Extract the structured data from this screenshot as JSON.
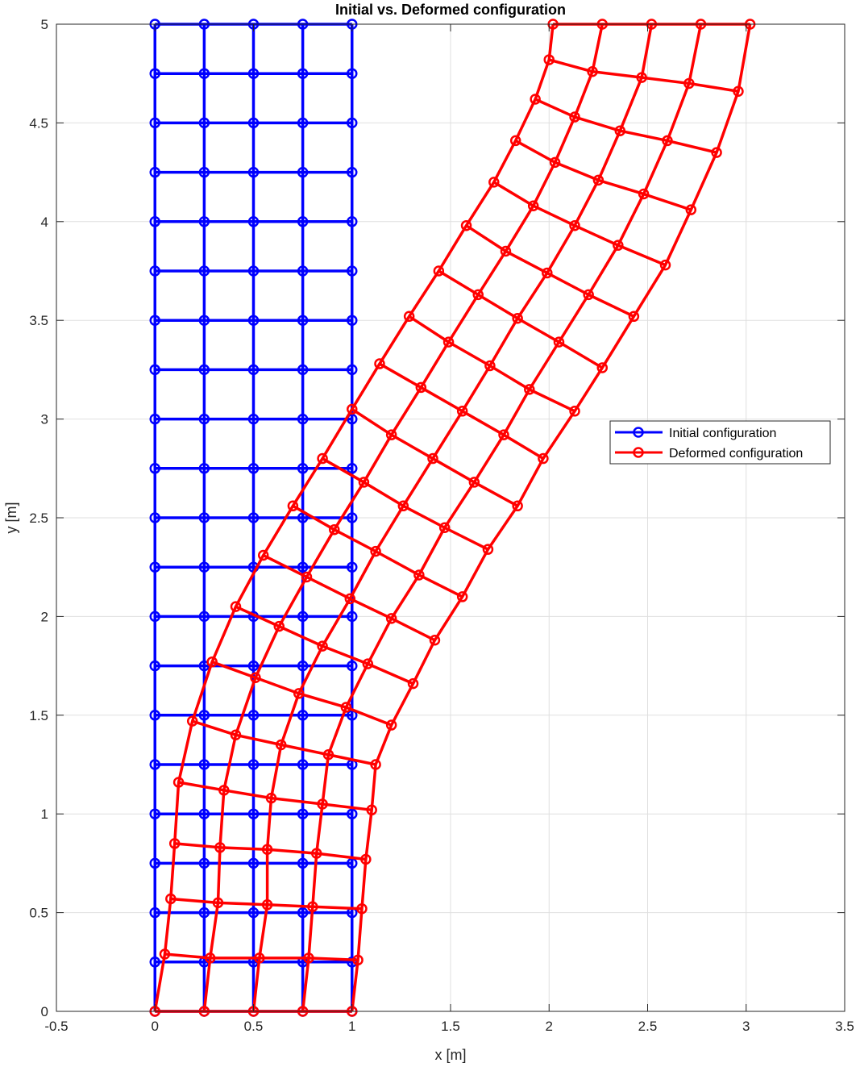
{
  "chart_data": {
    "type": "line",
    "title": "Initial vs. Deformed configuration",
    "xlabel": "x [m]",
    "ylabel": "y [m]",
    "xlim": [
      -0.5,
      3.5
    ],
    "ylim": [
      0,
      5
    ],
    "xticks": [
      -0.5,
      0,
      0.5,
      1,
      1.5,
      2,
      2.5,
      3,
      3.5
    ],
    "xtick_labels": [
      "-0.5",
      "0",
      "0.5",
      "1",
      "1.5",
      "2",
      "2.5",
      "3",
      "3.5"
    ],
    "yticks": [
      0,
      0.5,
      1,
      1.5,
      2,
      2.5,
      3,
      3.5,
      4,
      4.5,
      5
    ],
    "ytick_labels": [
      "0",
      "0.5",
      "1",
      "1.5",
      "2",
      "2.5",
      "3",
      "3.5",
      "4",
      "4.5",
      "5"
    ],
    "grid": true,
    "legend_position": "right",
    "series": [
      {
        "name": "Initial configuration",
        "color": "#0000ff",
        "marker": "circle",
        "nodes": [
          [
            [
              0,
              0
            ],
            [
              0.25,
              0
            ],
            [
              0.5,
              0
            ],
            [
              0.75,
              0
            ],
            [
              1,
              0
            ]
          ],
          [
            [
              0,
              0.25
            ],
            [
              0.25,
              0.25
            ],
            [
              0.5,
              0.25
            ],
            [
              0.75,
              0.25
            ],
            [
              1,
              0.25
            ]
          ],
          [
            [
              0,
              0.5
            ],
            [
              0.25,
              0.5
            ],
            [
              0.5,
              0.5
            ],
            [
              0.75,
              0.5
            ],
            [
              1,
              0.5
            ]
          ],
          [
            [
              0,
              0.75
            ],
            [
              0.25,
              0.75
            ],
            [
              0.5,
              0.75
            ],
            [
              0.75,
              0.75
            ],
            [
              1,
              0.75
            ]
          ],
          [
            [
              0,
              1
            ],
            [
              0.25,
              1
            ],
            [
              0.5,
              1
            ],
            [
              0.75,
              1
            ],
            [
              1,
              1
            ]
          ],
          [
            [
              0,
              1.25
            ],
            [
              0.25,
              1.25
            ],
            [
              0.5,
              1.25
            ],
            [
              0.75,
              1.25
            ],
            [
              1,
              1.25
            ]
          ],
          [
            [
              0,
              1.5
            ],
            [
              0.25,
              1.5
            ],
            [
              0.5,
              1.5
            ],
            [
              0.75,
              1.5
            ],
            [
              1,
              1.5
            ]
          ],
          [
            [
              0,
              1.75
            ],
            [
              0.25,
              1.75
            ],
            [
              0.5,
              1.75
            ],
            [
              0.75,
              1.75
            ],
            [
              1,
              1.75
            ]
          ],
          [
            [
              0,
              2
            ],
            [
              0.25,
              2
            ],
            [
              0.5,
              2
            ],
            [
              0.75,
              2
            ],
            [
              1,
              2
            ]
          ],
          [
            [
              0,
              2.25
            ],
            [
              0.25,
              2.25
            ],
            [
              0.5,
              2.25
            ],
            [
              0.75,
              2.25
            ],
            [
              1,
              2.25
            ]
          ],
          [
            [
              0,
              2.5
            ],
            [
              0.25,
              2.5
            ],
            [
              0.5,
              2.5
            ],
            [
              0.75,
              2.5
            ],
            [
              1,
              2.5
            ]
          ],
          [
            [
              0,
              2.75
            ],
            [
              0.25,
              2.75
            ],
            [
              0.5,
              2.75
            ],
            [
              0.75,
              2.75
            ],
            [
              1,
              2.75
            ]
          ],
          [
            [
              0,
              3
            ],
            [
              0.25,
              3
            ],
            [
              0.5,
              3
            ],
            [
              0.75,
              3
            ],
            [
              1,
              3
            ]
          ],
          [
            [
              0,
              3.25
            ],
            [
              0.25,
              3.25
            ],
            [
              0.5,
              3.25
            ],
            [
              0.75,
              3.25
            ],
            [
              1,
              3.25
            ]
          ],
          [
            [
              0,
              3.5
            ],
            [
              0.25,
              3.5
            ],
            [
              0.5,
              3.5
            ],
            [
              0.75,
              3.5
            ],
            [
              1,
              3.5
            ]
          ],
          [
            [
              0,
              3.75
            ],
            [
              0.25,
              3.75
            ],
            [
              0.5,
              3.75
            ],
            [
              0.75,
              3.75
            ],
            [
              1,
              3.75
            ]
          ],
          [
            [
              0,
              4
            ],
            [
              0.25,
              4
            ],
            [
              0.5,
              4
            ],
            [
              0.75,
              4
            ],
            [
              1,
              4
            ]
          ],
          [
            [
              0,
              4.25
            ],
            [
              0.25,
              4.25
            ],
            [
              0.5,
              4.25
            ],
            [
              0.75,
              4.25
            ],
            [
              1,
              4.25
            ]
          ],
          [
            [
              0,
              4.5
            ],
            [
              0.25,
              4.5
            ],
            [
              0.5,
              4.5
            ],
            [
              0.75,
              4.5
            ],
            [
              1,
              4.5
            ]
          ],
          [
            [
              0,
              4.75
            ],
            [
              0.25,
              4.75
            ],
            [
              0.5,
              4.75
            ],
            [
              0.75,
              4.75
            ],
            [
              1,
              4.75
            ]
          ],
          [
            [
              0,
              5
            ],
            [
              0.25,
              5
            ],
            [
              0.5,
              5
            ],
            [
              0.75,
              5
            ],
            [
              1,
              5
            ]
          ]
        ]
      },
      {
        "name": "Deformed configuration",
        "color": "#ff0000",
        "marker": "circle",
        "nodes": [
          [
            [
              0,
              0
            ],
            [
              0.25,
              0
            ],
            [
              0.5,
              0
            ],
            [
              0.75,
              0
            ],
            [
              1,
              0
            ]
          ],
          [
            [
              0.05,
              0.29
            ],
            [
              0.28,
              0.27
            ],
            [
              0.53,
              0.27
            ],
            [
              0.78,
              0.27
            ],
            [
              1.03,
              0.26
            ]
          ],
          [
            [
              0.08,
              0.57
            ],
            [
              0.32,
              0.55
            ],
            [
              0.57,
              0.54
            ],
            [
              0.8,
              0.53
            ],
            [
              1.05,
              0.52
            ]
          ],
          [
            [
              0.1,
              0.85
            ],
            [
              0.33,
              0.83
            ],
            [
              0.57,
              0.82
            ],
            [
              0.82,
              0.8
            ],
            [
              1.07,
              0.77
            ]
          ],
          [
            [
              0.12,
              1.16
            ],
            [
              0.35,
              1.12
            ],
            [
              0.59,
              1.08
            ],
            [
              0.85,
              1.05
            ],
            [
              1.1,
              1.02
            ]
          ],
          [
            [
              0.19,
              1.47
            ],
            [
              0.41,
              1.4
            ],
            [
              0.64,
              1.35
            ],
            [
              0.88,
              1.3
            ],
            [
              1.12,
              1.25
            ]
          ],
          [
            [
              0.29,
              1.77
            ],
            [
              0.51,
              1.69
            ],
            [
              0.73,
              1.61
            ],
            [
              0.97,
              1.54
            ],
            [
              1.2,
              1.45
            ]
          ],
          [
            [
              0.41,
              2.05
            ],
            [
              0.63,
              1.95
            ],
            [
              0.85,
              1.85
            ],
            [
              1.08,
              1.76
            ],
            [
              1.31,
              1.66
            ]
          ],
          [
            [
              0.55,
              2.31
            ],
            [
              0.77,
              2.2
            ],
            [
              0.99,
              2.09
            ],
            [
              1.2,
              1.99
            ],
            [
              1.42,
              1.88
            ]
          ],
          [
            [
              0.7,
              2.56
            ],
            [
              0.91,
              2.44
            ],
            [
              1.12,
              2.33
            ],
            [
              1.34,
              2.21
            ],
            [
              1.56,
              2.1
            ]
          ],
          [
            [
              0.85,
              2.8
            ],
            [
              1.06,
              2.68
            ],
            [
              1.26,
              2.56
            ],
            [
              1.47,
              2.45
            ],
            [
              1.69,
              2.34
            ]
          ],
          [
            [
              1,
              3.05
            ],
            [
              1.2,
              2.92
            ],
            [
              1.41,
              2.8
            ],
            [
              1.62,
              2.68
            ],
            [
              1.84,
              2.56
            ]
          ],
          [
            [
              1.14,
              3.28
            ],
            [
              1.35,
              3.16
            ],
            [
              1.56,
              3.04
            ],
            [
              1.77,
              2.92
            ],
            [
              1.97,
              2.8
            ]
          ],
          [
            [
              1.29,
              3.52
            ],
            [
              1.49,
              3.39
            ],
            [
              1.7,
              3.27
            ],
            [
              1.9,
              3.15
            ],
            [
              2.13,
              3.04
            ]
          ],
          [
            [
              1.44,
              3.75
            ],
            [
              1.64,
              3.63
            ],
            [
              1.84,
              3.51
            ],
            [
              2.05,
              3.39
            ],
            [
              2.27,
              3.26
            ]
          ],
          [
            [
              1.58,
              3.98
            ],
            [
              1.78,
              3.85
            ],
            [
              1.99,
              3.74
            ],
            [
              2.2,
              3.63
            ],
            [
              2.43,
              3.52
            ]
          ],
          [
            [
              1.72,
              4.2
            ],
            [
              1.92,
              4.08
            ],
            [
              2.13,
              3.98
            ],
            [
              2.35,
              3.88
            ],
            [
              2.59,
              3.78
            ]
          ],
          [
            [
              1.83,
              4.41
            ],
            [
              2.03,
              4.3
            ],
            [
              2.25,
              4.21
            ],
            [
              2.48,
              4.14
            ],
            [
              2.72,
              4.06
            ]
          ],
          [
            [
              1.93,
              4.62
            ],
            [
              2.13,
              4.53
            ],
            [
              2.36,
              4.46
            ],
            [
              2.6,
              4.41
            ],
            [
              2.85,
              4.35
            ]
          ],
          [
            [
              2,
              4.82
            ],
            [
              2.22,
              4.76
            ],
            [
              2.47,
              4.73
            ],
            [
              2.71,
              4.7
            ],
            [
              2.96,
              4.66
            ]
          ],
          [
            [
              2.02,
              5
            ],
            [
              2.27,
              5
            ],
            [
              2.52,
              5
            ],
            [
              2.77,
              5
            ],
            [
              3.02,
              5
            ]
          ]
        ]
      }
    ]
  }
}
